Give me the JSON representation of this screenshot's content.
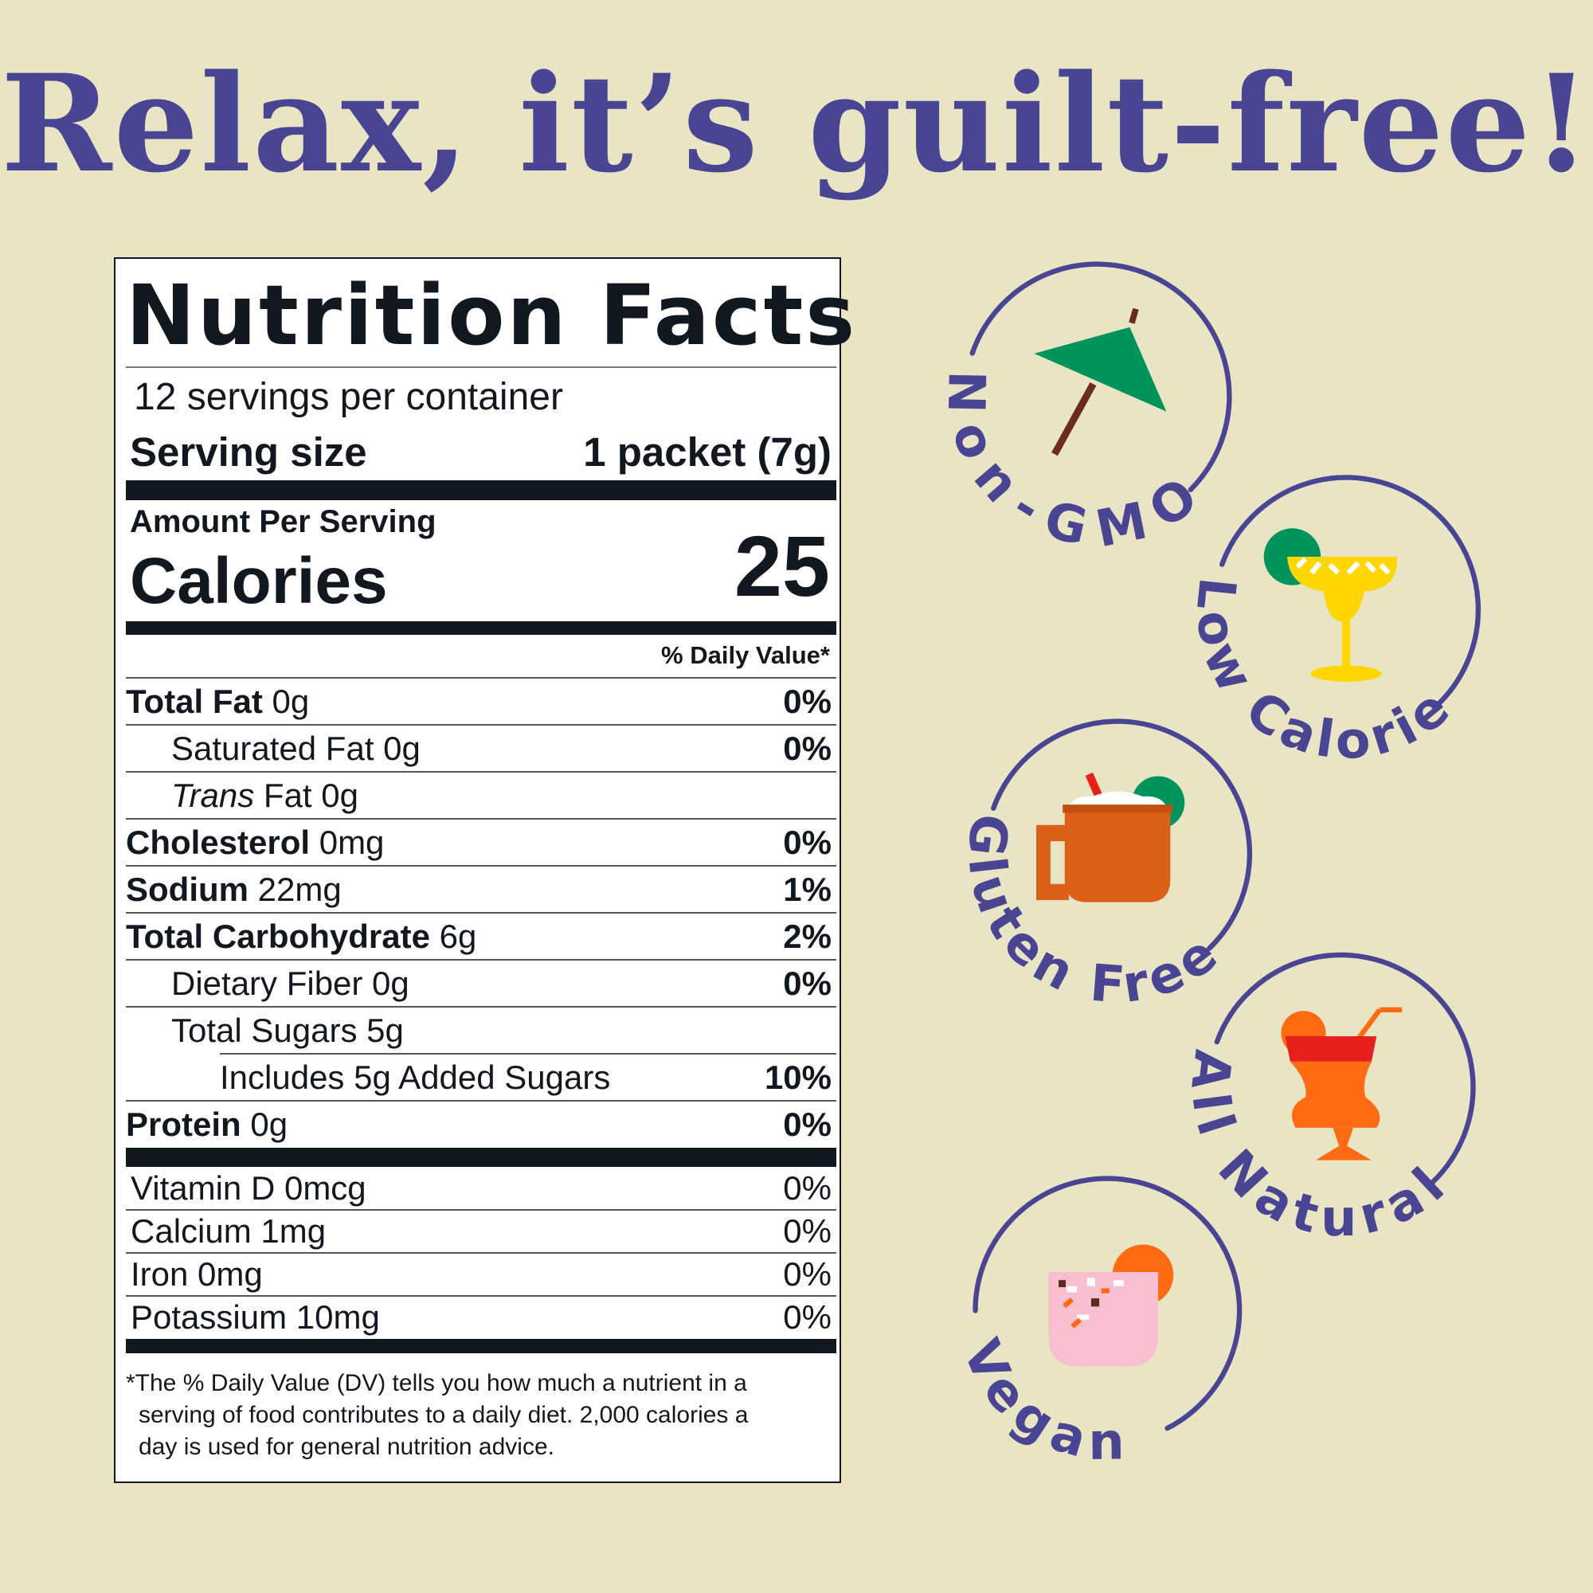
{
  "headline": "Relax, it’s guilt-free!",
  "colors": {
    "background": "#E9E4C4",
    "headline": "#4A4593",
    "ink": "#111820",
    "badge_stroke": "#4A4593"
  },
  "label": {
    "title": "Nutrition Facts",
    "servings": "12 servings per container",
    "serving_size_label": "Serving size",
    "serving_size_value": "1 packet (7g)",
    "amount_per_serving": "Amount Per Serving",
    "calories_label": "Calories",
    "calories_value": "25",
    "dv_header": "% Daily Value*",
    "rows": [
      {
        "bold": "Total Fat",
        "rest": " 0g",
        "dv": "0%",
        "indent": 0
      },
      {
        "bold": "",
        "rest": "Saturated Fat 0g",
        "dv": "0%",
        "indent": 1
      },
      {
        "italic": "Trans",
        "rest": " Fat 0g",
        "dv": "",
        "indent": 1
      },
      {
        "bold": "Cholesterol",
        "rest": " 0mg",
        "dv": "0%",
        "indent": 0
      },
      {
        "bold": "Sodium",
        "rest": " 22mg",
        "dv": "1%",
        "indent": 0
      },
      {
        "bold": "Total Carbohydrate",
        "rest": " 6g",
        "dv": "2%",
        "indent": 0
      },
      {
        "bold": "",
        "rest": "Dietary Fiber 0g",
        "dv": "0%",
        "indent": 1
      },
      {
        "bold": "",
        "rest": "Total Sugars 5g",
        "dv": "",
        "indent": 1
      },
      {
        "bold": "",
        "rest": "Includes 5g Added Sugars",
        "dv": "10%",
        "indent": 2
      },
      {
        "bold": "Protein",
        "rest": " 0g",
        "dv": "0%",
        "indent": 0
      }
    ],
    "vitamins": [
      {
        "name": "Vitamin D 0mcg",
        "dv": "0%"
      },
      {
        "name": "Calcium 1mg",
        "dv": "0%"
      },
      {
        "name": "Iron 0mg",
        "dv": "0%"
      },
      {
        "name": "Potassium 10mg",
        "dv": "0%"
      }
    ],
    "footnote": [
      "*The % Daily Value (DV) tells you how much a nutrient in a",
      "serving of food contributes to a daily diet. 2,000 calories a",
      "day is used for general nutrition advice."
    ]
  },
  "badges": [
    {
      "label": "Non-GMO",
      "icon": "cocktail-umbrella-icon"
    },
    {
      "label": "Low Calorie",
      "icon": "margarita-glass-icon"
    },
    {
      "label": "Gluten Free",
      "icon": "copper-mug-icon"
    },
    {
      "label": "All Natural",
      "icon": "hurricane-glass-icon"
    },
    {
      "label": "Vegan",
      "icon": "pink-cocktail-icon"
    }
  ]
}
